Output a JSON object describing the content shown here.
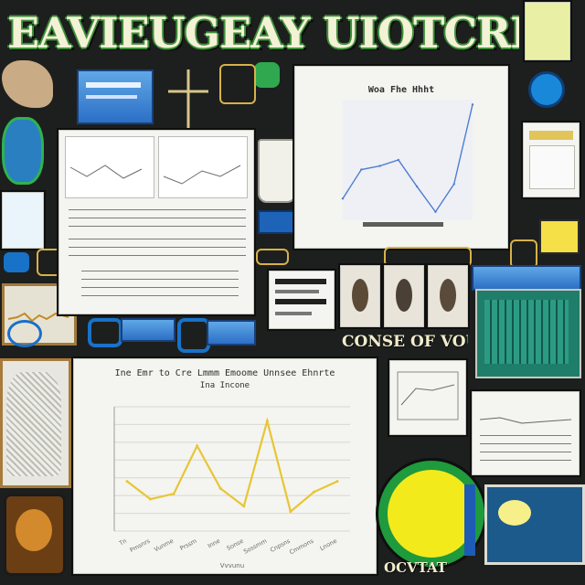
{
  "poster": {
    "title": "EAVIEUGEAY UIOTCREY",
    "caption_middle": "CONSE OF VOU",
    "caption_bottom": "OCVTAT"
  },
  "chart_data": [
    {
      "type": "line",
      "title": "Woa Fhe Hhht",
      "xlabel": "",
      "ylabel": "",
      "x": [
        0,
        1,
        2,
        3,
        4,
        5,
        6,
        7
      ],
      "values": [
        18,
        42,
        45,
        50,
        28,
        7,
        30,
        96
      ],
      "ylim": [
        0,
        100
      ],
      "color": "#4f7fd0"
    },
    {
      "type": "line",
      "title": "Ine Emr to Cre Lmmm Emoome Unnsee Ehnrte",
      "subtitle": "Ina Incone",
      "xlabel": "Vvvunu",
      "ylabel": "",
      "categories": [
        "Tn",
        "Pmsnrs",
        "Vunme",
        "Prssm",
        "Inne",
        "Sonse",
        "Sossmm",
        "Cnpsns",
        "Cmmons",
        "Lnone"
      ],
      "values": [
        28,
        18,
        21,
        48,
        24,
        14,
        62,
        11,
        22,
        28
      ],
      "ylim": [
        0,
        70
      ],
      "color": "#e7c636"
    }
  ]
}
